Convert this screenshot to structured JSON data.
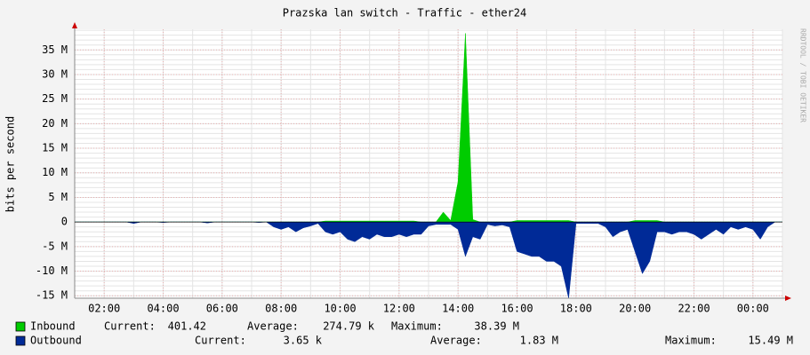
{
  "chart_data": {
    "type": "area",
    "title": "Prazska lan switch - Traffic - ether24",
    "y_label": "bits per second",
    "watermark": "RRDTOOL / TOBI OETIKER",
    "x": [
      1,
      1.25,
      1.5,
      1.75,
      2,
      2.25,
      2.5,
      2.75,
      3,
      3.25,
      3.5,
      3.75,
      4,
      4.25,
      4.5,
      4.75,
      5,
      5.25,
      5.5,
      5.75,
      6,
      6.25,
      6.5,
      6.75,
      7,
      7.25,
      7.5,
      7.75,
      8,
      8.25,
      8.5,
      8.75,
      9,
      9.25,
      9.5,
      9.75,
      10,
      10.25,
      10.5,
      10.75,
      11,
      11.25,
      11.5,
      11.75,
      12,
      12.25,
      12.5,
      12.75,
      13,
      13.25,
      13.5,
      13.75,
      14,
      14.25,
      14.5,
      14.75,
      15,
      15.25,
      15.5,
      15.75,
      16,
      16.25,
      16.5,
      16.75,
      17,
      17.25,
      17.5,
      17.75,
      18,
      18.25,
      18.5,
      18.75,
      19,
      19.25,
      19.5,
      19.75,
      20,
      20.25,
      20.5,
      20.75,
      21,
      21.25,
      21.5,
      21.75,
      22,
      22.25,
      22.5,
      22.75,
      23,
      23.25,
      23.5,
      23.75,
      24,
      24.25,
      24.5,
      24.75,
      25
    ],
    "xlim": [
      1,
      25
    ],
    "xticks": [
      {
        "value": 2,
        "label": "02:00"
      },
      {
        "value": 4,
        "label": "04:00"
      },
      {
        "value": 6,
        "label": "06:00"
      },
      {
        "value": 8,
        "label": "08:00"
      },
      {
        "value": 10,
        "label": "10:00"
      },
      {
        "value": 12,
        "label": "12:00"
      },
      {
        "value": 14,
        "label": "14:00"
      },
      {
        "value": 16,
        "label": "16:00"
      },
      {
        "value": 18,
        "label": "18:00"
      },
      {
        "value": 20,
        "label": "20:00"
      },
      {
        "value": 22,
        "label": "22:00"
      },
      {
        "value": 24,
        "label": "00:00"
      }
    ],
    "ylim": [
      -15500000,
      39200000
    ],
    "yticks": [
      {
        "value": 35000000,
        "label": "35 M"
      },
      {
        "value": 30000000,
        "label": "30 M"
      },
      {
        "value": 25000000,
        "label": "25 M"
      },
      {
        "value": 20000000,
        "label": "20 M"
      },
      {
        "value": 15000000,
        "label": "15 M"
      },
      {
        "value": 10000000,
        "label": "10 M"
      },
      {
        "value": 5000000,
        "label": "5 M"
      },
      0,
      {
        "value": -5000000,
        "label": "-5 M"
      },
      {
        "value": -10000000,
        "label": "-10 M"
      },
      {
        "value": -15000000,
        "label": "-15 M"
      }
    ],
    "grid": true,
    "series": [
      {
        "name": "Inbound",
        "color": "#00cc00",
        "stats": [
          [
            "Current:",
            "401.42"
          ],
          [
            "Average:",
            "274.79 k"
          ],
          [
            "Maximum:",
            "38.39 M"
          ]
        ],
        "values": [
          0,
          0,
          0,
          0,
          0,
          0,
          0,
          0,
          0,
          0,
          0,
          0,
          0,
          0,
          0,
          0,
          0,
          0,
          0,
          0,
          0,
          0,
          0,
          0,
          0,
          0,
          0,
          0,
          0,
          0,
          0,
          0,
          0,
          0,
          200000,
          200000,
          200000,
          200000,
          200000,
          200000,
          200000,
          200000,
          200000,
          200000,
          200000,
          200000,
          200000,
          0,
          0,
          0,
          2000000,
          300000,
          8200000,
          38390000,
          500000,
          0,
          0,
          0,
          0,
          0,
          300000,
          300000,
          300000,
          300000,
          300000,
          300000,
          300000,
          300000,
          0,
          0,
          0,
          0,
          0,
          0,
          0,
          0,
          300000,
          300000,
          300000,
          300000,
          0,
          0,
          0,
          0,
          0,
          0,
          0,
          0,
          0,
          0,
          0,
          0,
          0,
          0,
          0,
          0,
          0
        ]
      },
      {
        "name": "Outbound",
        "color": "#002a97",
        "stats": [
          [
            "Current:",
            "3.65 k"
          ],
          [
            "Average:",
            "1.83 M"
          ],
          [
            "Maximum:",
            "15.49 M"
          ]
        ],
        "values": [
          0,
          0,
          0,
          0,
          0,
          0,
          0,
          0,
          -300000,
          0,
          0,
          0,
          -100000,
          0,
          0,
          0,
          0,
          0,
          -200000,
          0,
          0,
          0,
          0,
          0,
          0,
          -100000,
          0,
          -1000000,
          -1500000,
          -1000000,
          -2000000,
          -1200000,
          -800000,
          -300000,
          -2000000,
          -2500000,
          -2000000,
          -3500000,
          -4000000,
          -3000000,
          -3500000,
          -2500000,
          -3000000,
          -3000000,
          -2500000,
          -3000000,
          -2500000,
          -2500000,
          -800000,
          -500000,
          -500000,
          -500000,
          -1500000,
          -7000000,
          -3000000,
          -3500000,
          -500000,
          -800000,
          -600000,
          -1000000,
          -6000000,
          -6500000,
          -7000000,
          -7000000,
          -8000000,
          -8000000,
          -9000000,
          -15490000,
          -300000,
          -300000,
          -300000,
          -300000,
          -1000000,
          -3000000,
          -2000000,
          -1500000,
          -6000000,
          -10500000,
          -8000000,
          -2000000,
          -2000000,
          -2500000,
          -2000000,
          -2000000,
          -2500000,
          -3500000,
          -2500000,
          -1500000,
          -2500000,
          -1000000,
          -1500000,
          -1000000,
          -1500000,
          -3500000,
          -1000000,
          0,
          0
        ]
      }
    ]
  }
}
